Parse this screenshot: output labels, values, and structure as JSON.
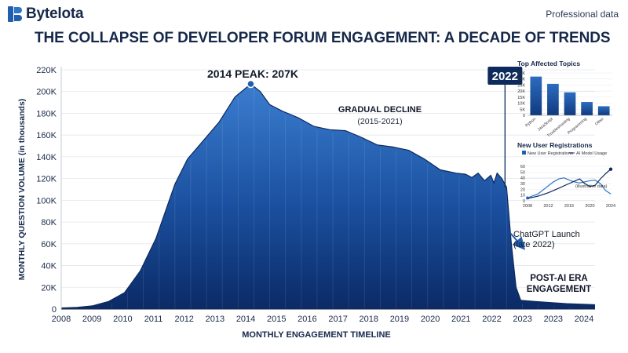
{
  "brand": {
    "name": "Bytelota",
    "tagline": "Professional data"
  },
  "title": "THE COLLAPSE OF DEVELOPER FORUM ENGAGEMENT: A DECADE OF TRENDS",
  "colors": {
    "accent": "#1f5fae",
    "dark": "#0d2a5c",
    "area_top": "#3b7dd0",
    "area_bottom": "#0b2a66"
  },
  "chart_data": [
    {
      "type": "area",
      "xlabel": "MONTHLY ENGAGEMENT TIMELINE",
      "ylabel": "MONTHLY QUESTION VOLUME (in thousands)",
      "x_ticks": [
        "2008",
        "2009",
        "2010",
        "2011",
        "2012",
        "2013",
        "2014",
        "2015",
        "2016",
        "2017",
        "2018",
        "2019",
        "2020",
        "2021",
        "2022",
        "2023",
        "2023",
        "2024"
      ],
      "y_ticks": [
        "0",
        "20K",
        "40K",
        "60K",
        "80K",
        "100K",
        "120K",
        "140K",
        "160K",
        "180K",
        "200K",
        "220K"
      ],
      "ylim": [
        0,
        220
      ],
      "xlim": [
        2008,
        2024.9
      ],
      "grid": true,
      "series": [
        {
          "values": [
            [
              2008.0,
              1
            ],
            [
              2008.5,
              1.5
            ],
            [
              2009.0,
              3
            ],
            [
              2009.5,
              7
            ],
            [
              2010.0,
              15
            ],
            [
              2010.5,
              35
            ],
            [
              2011.0,
              65
            ],
            [
              2011.3,
              90
            ],
            [
              2011.6,
              115
            ],
            [
              2012.0,
              138
            ],
            [
              2012.5,
              155
            ],
            [
              2013.0,
              172
            ],
            [
              2013.5,
              195
            ],
            [
              2014.0,
              207
            ],
            [
              2014.3,
              200
            ],
            [
              2014.6,
              188
            ],
            [
              2015.0,
              182
            ],
            [
              2015.5,
              176
            ],
            [
              2016.0,
              168
            ],
            [
              2016.5,
              165
            ],
            [
              2017.0,
              164
            ],
            [
              2017.5,
              158
            ],
            [
              2018.0,
              151
            ],
            [
              2018.5,
              149
            ],
            [
              2019.0,
              146
            ],
            [
              2019.5,
              138
            ],
            [
              2020.0,
              128
            ],
            [
              2020.5,
              125
            ],
            [
              2020.8,
              124
            ],
            [
              2021.0,
              121
            ],
            [
              2021.2,
              125
            ],
            [
              2021.4,
              118
            ],
            [
              2021.6,
              123
            ],
            [
              2021.7,
              116
            ],
            [
              2021.8,
              125
            ],
            [
              2021.95,
              120
            ],
            [
              2022.1,
              112
            ],
            [
              2022.25,
              60
            ],
            [
              2022.4,
              20
            ],
            [
              2022.55,
              8
            ],
            [
              2023.0,
              7
            ],
            [
              2023.5,
              6
            ],
            [
              2024.0,
              5
            ],
            [
              2024.5,
              4.5
            ],
            [
              2024.9,
              4
            ]
          ]
        }
      ],
      "annotations": {
        "peak": {
          "label": "2014 PEAK: 207K",
          "x": 2014.0,
          "y": 207
        },
        "decline_title": "GRADUAL DECLINE",
        "decline_range": "(2015-2021)",
        "marker_label": "2022",
        "marker_x": 2022.05,
        "launch_line1": "ChatGPT Launch",
        "launch_line2": "(late 2022)",
        "launch_point": {
          "x": 2022.45,
          "y": 55
        },
        "post_line1": "POST-AI ERA",
        "post_line2": "ENGAGEMENT"
      }
    },
    {
      "type": "bar",
      "title": "Top Affected Topics",
      "categories": [
        "Python",
        "JavaScript",
        "Troubleshooting",
        "Programming",
        "Other"
      ],
      "values": [
        32,
        26,
        19,
        11,
        7.5
      ],
      "y_ticks": [
        "0",
        "5K",
        "10K",
        "15K",
        "20K",
        "25K",
        "30K",
        "35K"
      ],
      "ylim": [
        0,
        35
      ]
    },
    {
      "type": "line",
      "title": "New User Registrations",
      "x_ticks": [
        "2008",
        "2012",
        "2016",
        "2020",
        "2024"
      ],
      "y_ticks": [
        "0",
        "10",
        "20",
        "30",
        "40",
        "50",
        "60"
      ],
      "ylim": [
        0,
        60
      ],
      "xlim": [
        2008,
        2024
      ],
      "annotation": "(illustrative data)",
      "series": [
        {
          "name": "New User Registrations",
          "values": [
            [
              2008,
              5
            ],
            [
              2010,
              12
            ],
            [
              2012,
              26
            ],
            [
              2013,
              33
            ],
            [
              2014,
              38
            ],
            [
              2015,
              40
            ],
            [
              2016,
              36
            ],
            [
              2017,
              33
            ],
            [
              2018,
              31
            ],
            [
              2019,
              33
            ],
            [
              2020,
              35
            ],
            [
              2021,
              36
            ],
            [
              2022,
              30
            ],
            [
              2023,
              18
            ],
            [
              2024,
              12
            ]
          ]
        },
        {
          "name": "AI Model Usage",
          "values": [
            [
              2008,
              4
            ],
            [
              2010,
              8
            ],
            [
              2012,
              14
            ],
            [
              2014,
              22
            ],
            [
              2016,
              30
            ],
            [
              2017,
              34
            ],
            [
              2018,
              38
            ],
            [
              2019,
              30
            ],
            [
              2020,
              25
            ],
            [
              2021,
              27
            ],
            [
              2022,
              38
            ],
            [
              2023,
              47
            ],
            [
              2024,
              55
            ]
          ]
        }
      ]
    }
  ]
}
